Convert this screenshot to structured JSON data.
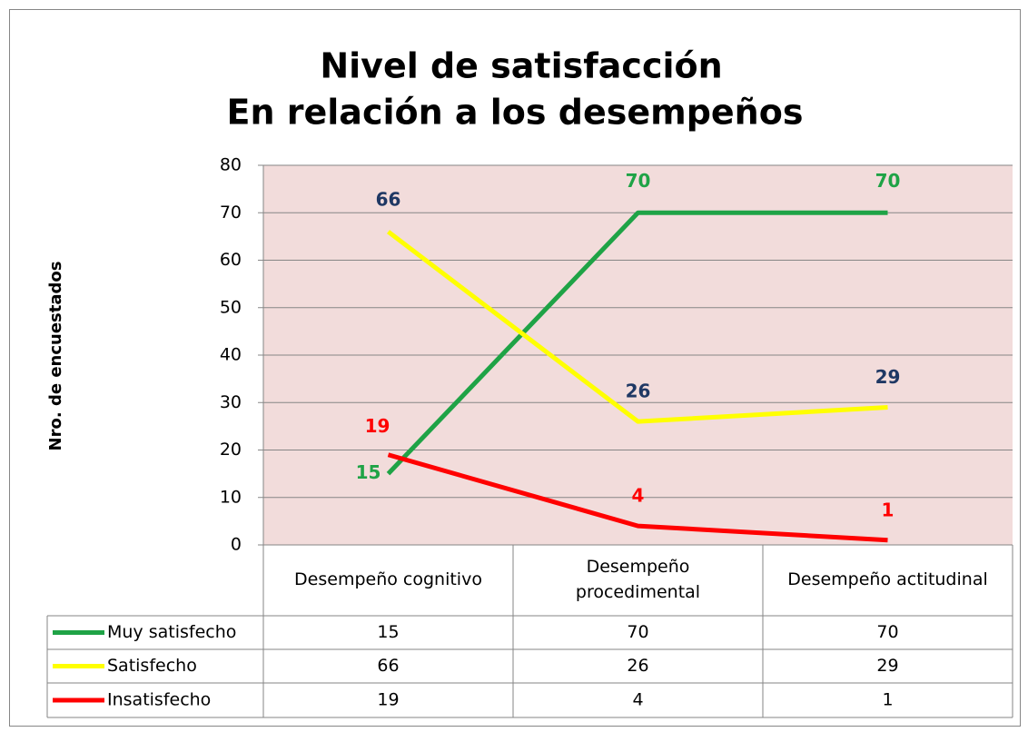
{
  "chart_data": {
    "type": "line",
    "title": "Nivel de satisfacción",
    "subtitle": "En relación a  los desempeños",
    "y_label": "Nro. de encuestados",
    "categories": [
      "Desempeño cognitivo",
      "Desempeño procedimental",
      "Desempeño actitudinal"
    ],
    "series": [
      {
        "name": "Muy satisfecho",
        "color": "#1fa346",
        "label_color": "#1fa346",
        "values": [
          15,
          70,
          70
        ]
      },
      {
        "name": "Satisfecho",
        "color": "#ffff00",
        "label_color": "#1f3864",
        "values": [
          66,
          26,
          29
        ]
      },
      {
        "name": "Insatisfecho",
        "color": "#ff0000",
        "label_color": "#ff0000",
        "values": [
          19,
          4,
          1
        ]
      }
    ],
    "ylim": [
      0,
      80
    ],
    "yticks": [
      0,
      10,
      20,
      30,
      40,
      50,
      60,
      70,
      80
    ],
    "grid": true,
    "plot_background": "#f2dcdb",
    "data_table": true
  }
}
